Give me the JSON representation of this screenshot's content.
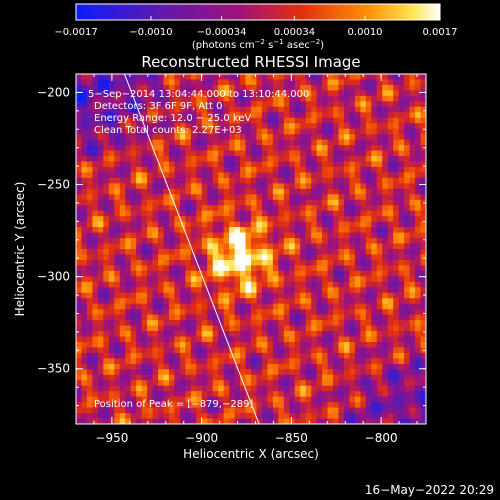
{
  "chart_data": {
    "type": "heatmap",
    "title": "Reconstructed RHESSI Image",
    "xlabel": "Heliocentric X (arcsec)",
    "ylabel": "Heliocentric Y (arcsec)",
    "xlim": [
      -970,
      -775
    ],
    "ylim": [
      -380,
      -190
    ],
    "x_ticks": [
      -950,
      -900,
      -850,
      -800
    ],
    "x_tick_labels": [
      "−950",
      "−900",
      "−850",
      "−800"
    ],
    "y_ticks": [
      -200,
      -250,
      -300,
      -350
    ],
    "y_tick_labels": [
      "−200",
      "−250",
      "−300",
      "−350"
    ],
    "colorbar": {
      "range": [
        -0.0017,
        0.0017
      ],
      "ticks": [
        -0.0017,
        -0.001,
        -0.00034,
        0.00034,
        0.001,
        0.0017
      ],
      "tick_labels": [
        "−0.0017",
        "−0.0010",
        "−0.00034",
        "0.00034",
        "0.0010",
        "0.0017"
      ],
      "unit_prefix": "(photons cm",
      "unit_sup1": "−2",
      "unit_mid": " s",
      "unit_sup2": "−1",
      "unit_mid2": " asec",
      "unit_sup3": "−2",
      "unit_suffix": ")"
    },
    "annotations": {
      "line1": "5−Sep−2014 13:04:44.000 to 13:10:44.000",
      "line2": "Detectors: 3F 6F 9F, Att 0",
      "line3": "Energy Range: 12.0 − 25.0 keV",
      "line4": "Clean    Total counts: 2.27E+03",
      "peak": "Position of Peak = [−879,−289]"
    },
    "peak": {
      "x": -879,
      "y": -289
    },
    "limb_line": {
      "x1": -943,
      "y1": -190,
      "x2": -868,
      "y2": -380
    },
    "colors": {
      "background": "#000000",
      "axes": "#ffffff",
      "colormap": "heat"
    }
  },
  "footer": {
    "timestamp": "16−May−2022 20:29"
  }
}
